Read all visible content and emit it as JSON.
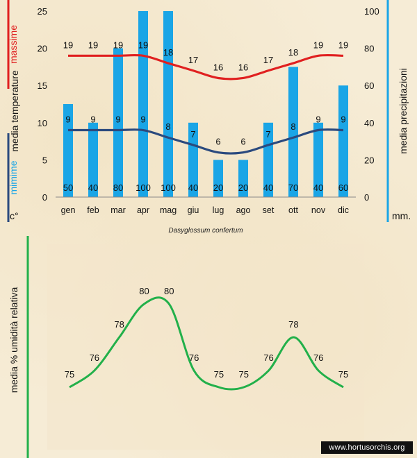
{
  "chart_data": [
    {
      "type": "bar",
      "categories": [
        "gen",
        "feb",
        "mar",
        "apr",
        "mag",
        "giu",
        "lug",
        "ago",
        "set",
        "ott",
        "nov",
        "dic"
      ],
      "caption": "Dasyglossum confertum",
      "left_axis": {
        "ylim": [
          0,
          25
        ],
        "ticks": [
          0,
          5,
          10,
          15,
          20,
          25
        ],
        "label_max": "massime",
        "label_mid": "media temperature",
        "label_min": "mimime",
        "unit": "c°"
      },
      "right_axis": {
        "ylim": [
          0,
          100
        ],
        "ticks": [
          0,
          20,
          40,
          60,
          80,
          100
        ],
        "label": "media precipitazioni",
        "unit": "mm."
      },
      "series": [
        {
          "name": "precipitazioni",
          "type": "bar",
          "axis": "right",
          "color": "#1aa5e6",
          "values": [
            50,
            40,
            80,
            100,
            100,
            40,
            20,
            20,
            40,
            70,
            40,
            60
          ]
        },
        {
          "name": "massime",
          "type": "line",
          "axis": "left",
          "color": "#e02020",
          "values": [
            19,
            19,
            19,
            19,
            18,
            17,
            16,
            16,
            17,
            18,
            19,
            19
          ]
        },
        {
          "name": "mimime",
          "type": "line",
          "axis": "left",
          "color": "#2b4a7e",
          "values": [
            9,
            9,
            9,
            9,
            8,
            7,
            6,
            6,
            7,
            8,
            9,
            9
          ]
        }
      ],
      "colors": {
        "max_bar": "#e02020",
        "min_bar": "#2b4a7e",
        "precip_bar": "#1aa5e6"
      }
    },
    {
      "type": "line",
      "ylabel": "media % umidità relativa",
      "categories": [
        "gen",
        "feb",
        "mar",
        "apr",
        "mag",
        "giu",
        "lug",
        "ago",
        "set",
        "ott",
        "nov",
        "dic"
      ],
      "values": [
        75,
        76,
        78,
        80,
        80,
        76,
        75,
        75,
        76,
        78,
        76,
        75
      ],
      "color": "#22b04a"
    }
  ],
  "watermark": "www.hortusorchis.org"
}
